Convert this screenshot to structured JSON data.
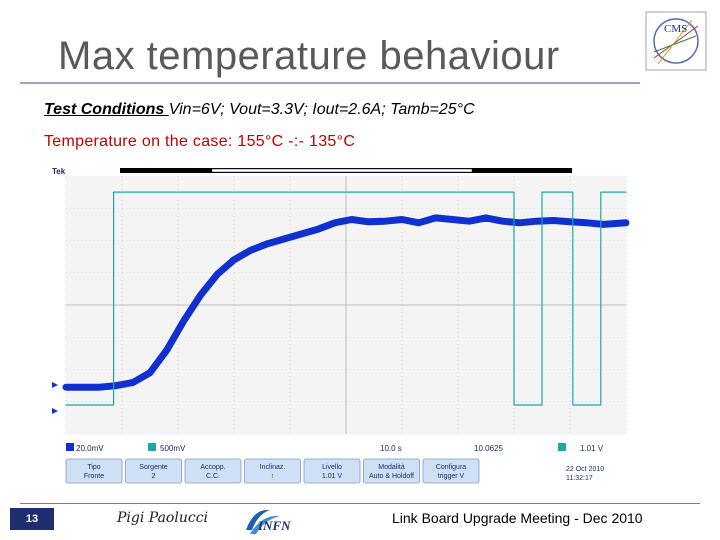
{
  "slide": {
    "title": "Max temperature behaviour",
    "conditions_label": "Test Conditions ",
    "conditions_text": "Vin=6V; Vout=3.3V; Iout=2.6A; Tamb=25°C",
    "temperature_text": "Temperature on the case: 155°C -:- 135°C",
    "page_number": "13",
    "author": "Pigi Paolucci",
    "meeting": "Link Board Upgrade Meeting - Dec 2010",
    "logo_text": "CMS",
    "infn_text": "INFN"
  },
  "scope": {
    "brand": "Tek",
    "ch1_scale": "20.0mV",
    "ch2_scale": "500mV",
    "timebase": "10.0 s",
    "trigger_info": "10.0625",
    "ch2_level": "1.01 V",
    "date": "22 Oct 2010",
    "time": "11:32:17",
    "colors": {
      "trace": "#1030d0",
      "ch2": "#1aa9a9",
      "grid": "#c8c8c8",
      "bg": "#f4f4f4"
    },
    "buttons": [
      {
        "top": "Tipo",
        "bottom": "Fronte"
      },
      {
        "top": "Sorgente",
        "bottom": "2"
      },
      {
        "top": "Accopp.",
        "bottom": "C.C."
      },
      {
        "top": "Inclinaz.",
        "bottom": "↑"
      },
      {
        "top": "Livello",
        "bottom": "1.01 V"
      },
      {
        "top": "Modalità",
        "bottom": "Auto & Holdoff"
      },
      {
        "top": "Configura",
        "bottom": "trigger V"
      }
    ]
  },
  "chart_data": {
    "type": "line",
    "title": "",
    "xlabel": "",
    "ylabel": "",
    "xlim": [
      0,
      10
    ],
    "ylim": [
      0,
      8
    ],
    "grid": true,
    "series": [
      {
        "x": [
          0,
          0.3,
          0.6,
          0.9,
          1.2,
          1.5,
          1.8,
          2.1,
          2.4,
          2.7,
          3.0,
          3.3,
          3.6,
          3.9,
          4.2,
          4.5,
          4.8,
          5.1,
          5.4,
          5.7,
          6.0,
          6.3,
          6.6,
          6.9,
          7.2,
          7.5,
          7.8,
          8.1,
          8.4,
          8.7,
          9.0,
          9.3,
          9.6,
          10.0
        ],
        "values": [
          1.45,
          1.45,
          1.45,
          1.5,
          1.6,
          1.9,
          2.6,
          3.5,
          4.3,
          4.95,
          5.4,
          5.7,
          5.9,
          6.05,
          6.2,
          6.35,
          6.55,
          6.65,
          6.58,
          6.6,
          6.65,
          6.55,
          6.7,
          6.65,
          6.6,
          6.7,
          6.6,
          6.55,
          6.6,
          6.62,
          6.58,
          6.55,
          6.5,
          6.55
        ]
      },
      {
        "x": [
          0,
          0.85,
          0.85,
          8.0,
          8.0,
          8.5,
          8.5,
          9.05,
          9.05,
          9.55,
          9.55,
          10.0
        ],
        "values": [
          0.9,
          0.9,
          7.5,
          7.5,
          0.9,
          0.9,
          7.5,
          7.5,
          0.9,
          0.9,
          7.5,
          7.5
        ]
      }
    ]
  }
}
